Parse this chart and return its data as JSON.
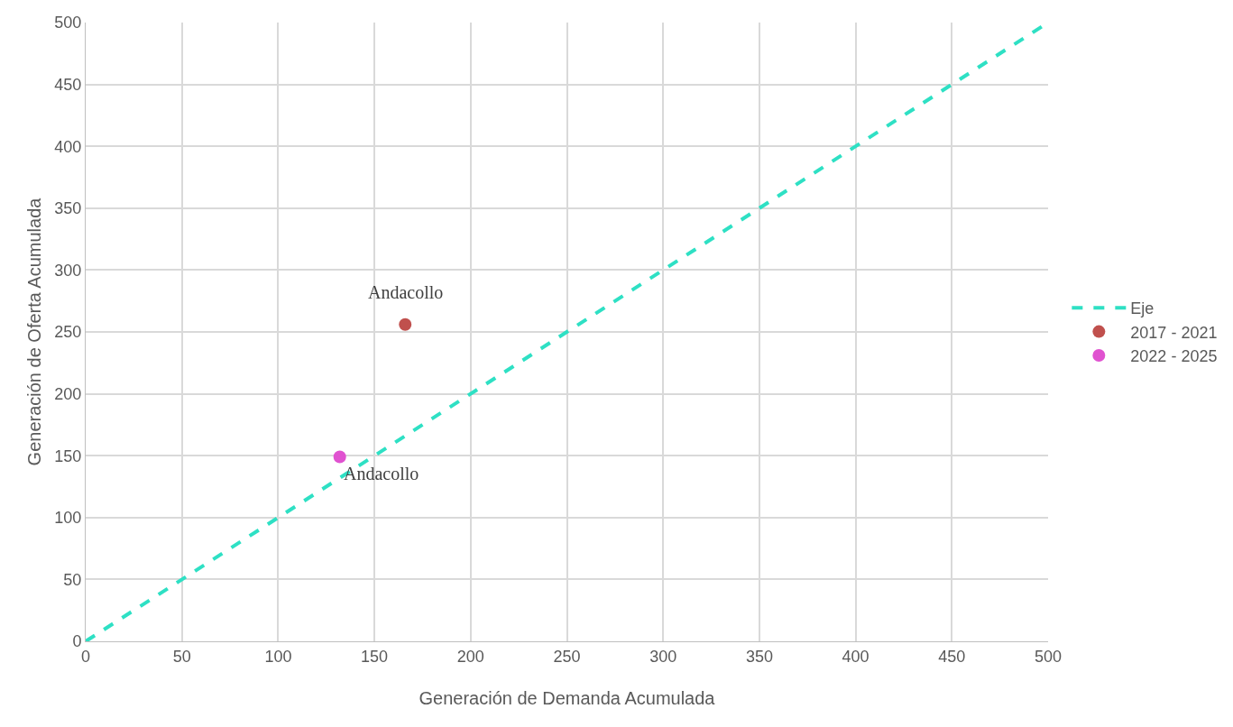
{
  "chart_data": {
    "type": "scatter",
    "xlabel": "Generación de Demanda Acumulada",
    "ylabel": "Generación de Oferta Acumulada",
    "xlim": [
      0,
      500
    ],
    "ylim": [
      0,
      500
    ],
    "xticks": [
      0,
      50,
      100,
      150,
      200,
      250,
      300,
      350,
      400,
      450,
      500
    ],
    "yticks": [
      0,
      50,
      100,
      150,
      200,
      250,
      300,
      350,
      400,
      450,
      500
    ],
    "grid": true,
    "legend": "right",
    "series": [
      {
        "name": "Eje",
        "type": "line",
        "marker": "none",
        "line_style": "dashed",
        "color": "#2ee0c4",
        "x": [
          0,
          500
        ],
        "values": [
          0,
          500
        ]
      },
      {
        "name": "2017 - 2021",
        "marker": "circle",
        "color": "#c0504d",
        "x": [
          166
        ],
        "values": [
          256
        ]
      },
      {
        "name": "2022 - 2025",
        "marker": "circle",
        "color": "#e052d0",
        "x": [
          132
        ],
        "values": [
          149
        ]
      }
    ],
    "annotations": [
      {
        "text": "Andacollo",
        "x": 166,
        "y": 256
      },
      {
        "text": "Andacollo",
        "x": 132,
        "y": 149
      }
    ]
  }
}
